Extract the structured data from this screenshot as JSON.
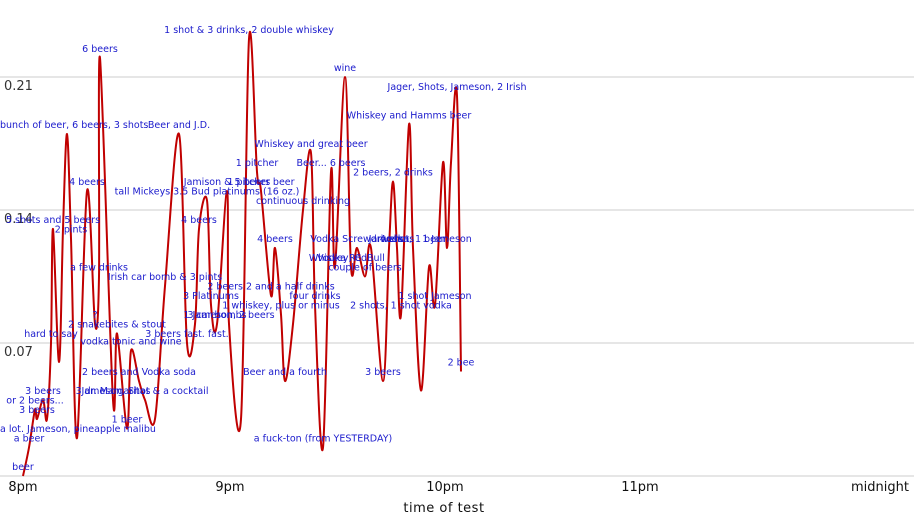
{
  "chart_data": {
    "type": "line",
    "title": "",
    "xlabel": "time of test",
    "ylabel": "",
    "x_ticks": [
      "8pm",
      "9pm",
      "10pm",
      "11pm",
      "midnight"
    ],
    "y_ticks": [
      "0.07",
      "0.14",
      "0.21"
    ],
    "x_range_hours": [
      0,
      2.2
    ],
    "ylim": [
      0.0,
      0.235
    ],
    "grid": "horizontal",
    "series_color": "#c00000",
    "annotation_color": "#1a1acc",
    "series": [
      {
        "points": [
          {
            "t": 0.0,
            "y": 0.0,
            "label": "beer"
          },
          {
            "t": 0.03,
            "y": 0.015,
            "label": "a beer"
          },
          {
            "t": 0.07,
            "y": 0.03,
            "label": "3 beers"
          },
          {
            "t": 0.06,
            "y": 0.035,
            "label": "or 2 beers..."
          },
          {
            "t": 0.1,
            "y": 0.04,
            "label": "3 beers"
          },
          {
            "t": 0.12,
            "y": 0.03,
            "label": ""
          },
          {
            "t": 0.14,
            "y": 0.07,
            "label": "hard to say"
          },
          {
            "t": 0.15,
            "y": 0.13,
            "label": "5 shots and 5 beers"
          },
          {
            "t": 0.18,
            "y": 0.06,
            "label": ""
          },
          {
            "t": 0.2,
            "y": 0.13,
            "label": ""
          },
          {
            "t": 0.22,
            "y": 0.18,
            "label": "bunch of beer, 6 beers, 3 shots"
          },
          {
            "t": 0.24,
            "y": 0.125,
            "label": "2 pints"
          },
          {
            "t": 0.27,
            "y": 0.02,
            "label": "a lot. Jameson, pineapple malibu"
          },
          {
            "t": 0.32,
            "y": 0.15,
            "label": "4 beers"
          },
          {
            "t": 0.36,
            "y": 0.08,
            "label": "?"
          },
          {
            "t": 0.38,
            "y": 0.105,
            "label": "a few drinks"
          },
          {
            "t": 0.385,
            "y": 0.22,
            "label": "6 beers"
          },
          {
            "t": 0.45,
            "y": 0.04,
            "label": "3 dr. Margaritas"
          },
          {
            "t": 0.47,
            "y": 0.075,
            "label": "2 snakebites & stout"
          },
          {
            "t": 0.52,
            "y": 0.025,
            "label": "1 beer"
          },
          {
            "t": 0.54,
            "y": 0.066,
            "label": "vodka tonic and wine"
          },
          {
            "t": 0.58,
            "y": 0.05,
            "label": "2 beers and Vodka soda"
          },
          {
            "t": 0.61,
            "y": 0.04,
            "label": "Jameson, Shot & a cocktail"
          },
          {
            "t": 0.66,
            "y": 0.03,
            "label": ""
          },
          {
            "t": 0.71,
            "y": 0.1,
            "label": "Irish car bomb & 3 pints"
          },
          {
            "t": 0.78,
            "y": 0.18,
            "label": "Beer and J.D."
          },
          {
            "t": 0.82,
            "y": 0.07,
            "label": "3 beers fast. fast."
          },
          {
            "t": 0.86,
            "y": 0.08,
            "label": ""
          },
          {
            "t": 0.88,
            "y": 0.13,
            "label": "4 beers"
          },
          {
            "t": 0.92,
            "y": 0.145,
            "label": "tall Mickeys 3.5 Bud platinums (16 oz.)"
          },
          {
            "t": 0.94,
            "y": 0.09,
            "label": "3 Platinums"
          },
          {
            "t": 0.97,
            "y": 0.08,
            "label": "3 car bombs"
          },
          {
            "t": 1.02,
            "y": 0.15,
            "label": "Jamison & 5 beers"
          },
          {
            "t": 1.03,
            "y": 0.08,
            "label": "1 Jameson, 2 beers"
          },
          {
            "t": 1.09,
            "y": 0.03,
            "label": ""
          },
          {
            "t": 1.13,
            "y": 0.23,
            "label": "1 shot & 3 drinks, 2 double whiskey"
          },
          {
            "t": 1.17,
            "y": 0.16,
            "label": "1 pitcher"
          },
          {
            "t": 1.19,
            "y": 0.15,
            "label": "1 pitcher beer"
          },
          {
            "t": 1.24,
            "y": 0.095,
            "label": "2 beers 2 and a half drinks"
          },
          {
            "t": 1.26,
            "y": 0.12,
            "label": "4 beers"
          },
          {
            "t": 1.29,
            "y": 0.085,
            "label": "1 whiskey, plus or minus"
          },
          {
            "t": 1.31,
            "y": 0.05,
            "label": "Beer and a fourth"
          },
          {
            "t": 1.35,
            "y": 0.08,
            "label": ""
          },
          {
            "t": 1.4,
            "y": 0.14,
            "label": "continuous drinking"
          },
          {
            "t": 1.44,
            "y": 0.17,
            "label": "Whiskey and great beer"
          },
          {
            "t": 1.46,
            "y": 0.09,
            "label": "four drinks"
          },
          {
            "t": 1.5,
            "y": 0.015,
            "label": "a fuck-ton (from YESTERDAY)"
          },
          {
            "t": 1.54,
            "y": 0.16,
            "label": "Beer... 6 beers"
          },
          {
            "t": 1.56,
            "y": 0.11,
            "label": "Whiskey, C"
          },
          {
            "t": 1.61,
            "y": 0.21,
            "label": "wine"
          },
          {
            "t": 1.64,
            "y": 0.11,
            "label": "Vodka RedBull"
          },
          {
            "t": 1.67,
            "y": 0.12,
            "label": "Vodka Screwdrivers"
          },
          {
            "t": 1.71,
            "y": 0.105,
            "label": "couple of beers"
          },
          {
            "t": 1.74,
            "y": 0.12,
            "label": ""
          },
          {
            "t": 1.8,
            "y": 0.05,
            "label": "3 beers"
          },
          {
            "t": 1.83,
            "y": 0.12,
            "label": "Jameson"
          },
          {
            "t": 1.85,
            "y": 0.155,
            "label": "2 beers, 2 drinks"
          },
          {
            "t": 1.87,
            "y": 0.12,
            "label": "4 shots"
          },
          {
            "t": 1.89,
            "y": 0.085,
            "label": "2 shots, 1 shot vodka"
          },
          {
            "t": 1.93,
            "y": 0.185,
            "label": "Whiskey and Hamms beer"
          },
          {
            "t": 1.95,
            "y": 0.12,
            "label": "vodka, 1 beer"
          },
          {
            "t": 1.99,
            "y": 0.045,
            "label": ""
          },
          {
            "t": 2.03,
            "y": 0.11,
            "label": ""
          },
          {
            "t": 2.06,
            "y": 0.09,
            "label": "1 shot Jameson"
          },
          {
            "t": 2.1,
            "y": 0.165,
            "label": ""
          },
          {
            "t": 2.12,
            "y": 0.12,
            "label": "1 Jameson"
          },
          {
            "t": 2.14,
            "y": 0.165,
            "label": ""
          },
          {
            "t": 2.17,
            "y": 0.2,
            "label": "Jager, Shots, Jameson, 2 Irish"
          },
          {
            "t": 2.19,
            "y": 0.055,
            "label": "2 bee"
          }
        ]
      }
    ]
  }
}
